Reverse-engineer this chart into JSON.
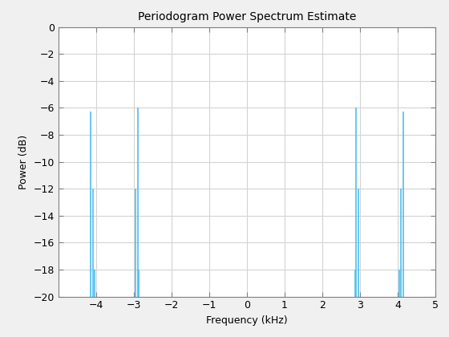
{
  "title": "Periodogram Power Spectrum Estimate",
  "xlabel": "Frequency (kHz)",
  "ylabel": "Power (dB)",
  "xlim": [
    -5,
    5
  ],
  "ylim": [
    -20,
    0
  ],
  "xticks": [
    -4,
    -3,
    -2,
    -1,
    0,
    1,
    2,
    3,
    4,
    5
  ],
  "yticks": [
    0,
    -2,
    -4,
    -6,
    -8,
    -10,
    -12,
    -14,
    -16,
    -18,
    -20
  ],
  "line_color": "#4DBEEE",
  "background_color": "#ffffff",
  "grid_color": "#d3d3d3",
  "spikes": [
    {
      "freq": -4.15,
      "power": -6.3
    },
    {
      "freq": -4.08,
      "power": -12.0
    },
    {
      "freq": -4.04,
      "power": -18.0
    },
    {
      "freq": -4.01,
      "power": -20.0
    },
    {
      "freq": -2.95,
      "power": -12.0
    },
    {
      "freq": -2.9,
      "power": -6.0
    },
    {
      "freq": -2.86,
      "power": -18.0
    },
    {
      "freq": -2.83,
      "power": -20.0
    },
    {
      "freq": 2.83,
      "power": -20.0
    },
    {
      "freq": 2.86,
      "power": -18.0
    },
    {
      "freq": 2.9,
      "power": -6.0
    },
    {
      "freq": 2.95,
      "power": -12.0
    },
    {
      "freq": 4.01,
      "power": -20.0
    },
    {
      "freq": 4.04,
      "power": -18.0
    },
    {
      "freq": 4.08,
      "power": -12.0
    },
    {
      "freq": 4.15,
      "power": -6.3
    }
  ],
  "figsize": [
    5.6,
    4.2
  ],
  "dpi": 100,
  "title_fontsize": 10,
  "label_fontsize": 9,
  "tick_fontsize": 9
}
